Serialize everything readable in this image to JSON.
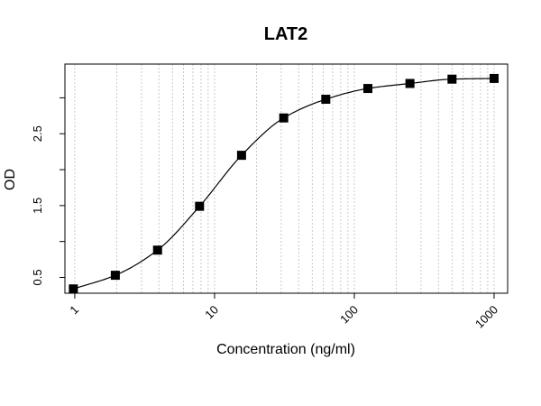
{
  "chart_data": {
    "type": "scatter",
    "title": "LAT2",
    "xlabel": "Concentration (ng/ml)",
    "ylabel": "OD",
    "x_scale": "log",
    "xlim": [
      0.85,
      1250
    ],
    "ylim": [
      0.28,
      3.47
    ],
    "x_ticks": [
      1,
      10,
      100,
      1000
    ],
    "x_tick_labels": [
      "1",
      "10",
      "100",
      "1000"
    ],
    "y_ticks": [
      0.5,
      1.0,
      1.5,
      2.0,
      2.5,
      3.0
    ],
    "y_tick_labels": [
      "0.5",
      "",
      "1.5",
      "",
      "2.5",
      ""
    ],
    "grid": "vertical dotted at log minor ticks",
    "points": {
      "x": [
        0.977,
        1.95,
        3.91,
        7.81,
        15.6,
        31.25,
        62.5,
        125,
        250,
        500,
        1000
      ],
      "y": [
        0.34,
        0.53,
        0.88,
        1.49,
        2.2,
        2.72,
        2.98,
        3.13,
        3.2,
        3.26,
        3.27
      ]
    },
    "curve": "four-parameter logistic fit",
    "colors": {
      "points": "#000000",
      "curve": "#000000",
      "grid": "#bdbdbd"
    }
  }
}
